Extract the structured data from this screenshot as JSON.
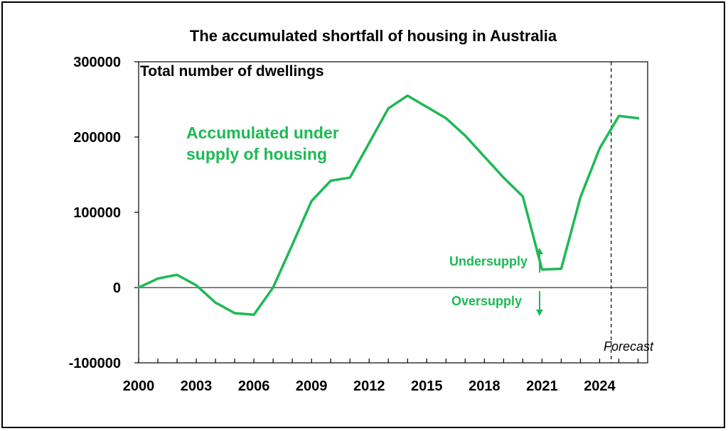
{
  "chart_data": {
    "type": "line",
    "title": "The accumulated shortfall of housing in Australia",
    "subtitle": "Total number of dwellings",
    "xlabel": "",
    "ylabel": "",
    "series": [
      {
        "name": "Accumulated under supply of housing",
        "color": "#1db954",
        "x": [
          2000,
          2001,
          2002,
          2003,
          2004,
          2005,
          2006,
          2007,
          2008,
          2009,
          2010,
          2011,
          2012,
          2013,
          2014,
          2015,
          2016,
          2017,
          2018,
          2019,
          2020,
          2021,
          2022,
          2023,
          2024,
          2025,
          2026
        ],
        "values": [
          0,
          12000,
          17000,
          3000,
          -20000,
          -34000,
          -36000,
          0,
          57000,
          115000,
          142000,
          146000,
          192000,
          238000,
          255000,
          240000,
          225000,
          202000,
          174000,
          146000,
          121000,
          24000,
          25000,
          120000,
          185000,
          228000,
          225000
        ]
      }
    ],
    "xlim": [
      2000,
      2026.5
    ],
    "ylim": [
      -100000,
      300000
    ],
    "x_ticks": [
      "2000",
      "2003",
      "2006",
      "2009",
      "2012",
      "2015",
      "2018",
      "2021",
      "2024"
    ],
    "y_ticks": [
      "300000",
      "200000",
      "100000",
      "0",
      "-100000"
    ],
    "forecast_start": 2024.6,
    "annotations": {
      "series_label_line1": "Accumulated under",
      "series_label_line2": "supply of housing",
      "undersupply": "Undersupply",
      "oversupply": "Oversupply",
      "forecast": "Forecast"
    },
    "grid": false,
    "colors": {
      "series": "#1db954",
      "axis": "#000000",
      "zero_line": "#808080"
    }
  }
}
